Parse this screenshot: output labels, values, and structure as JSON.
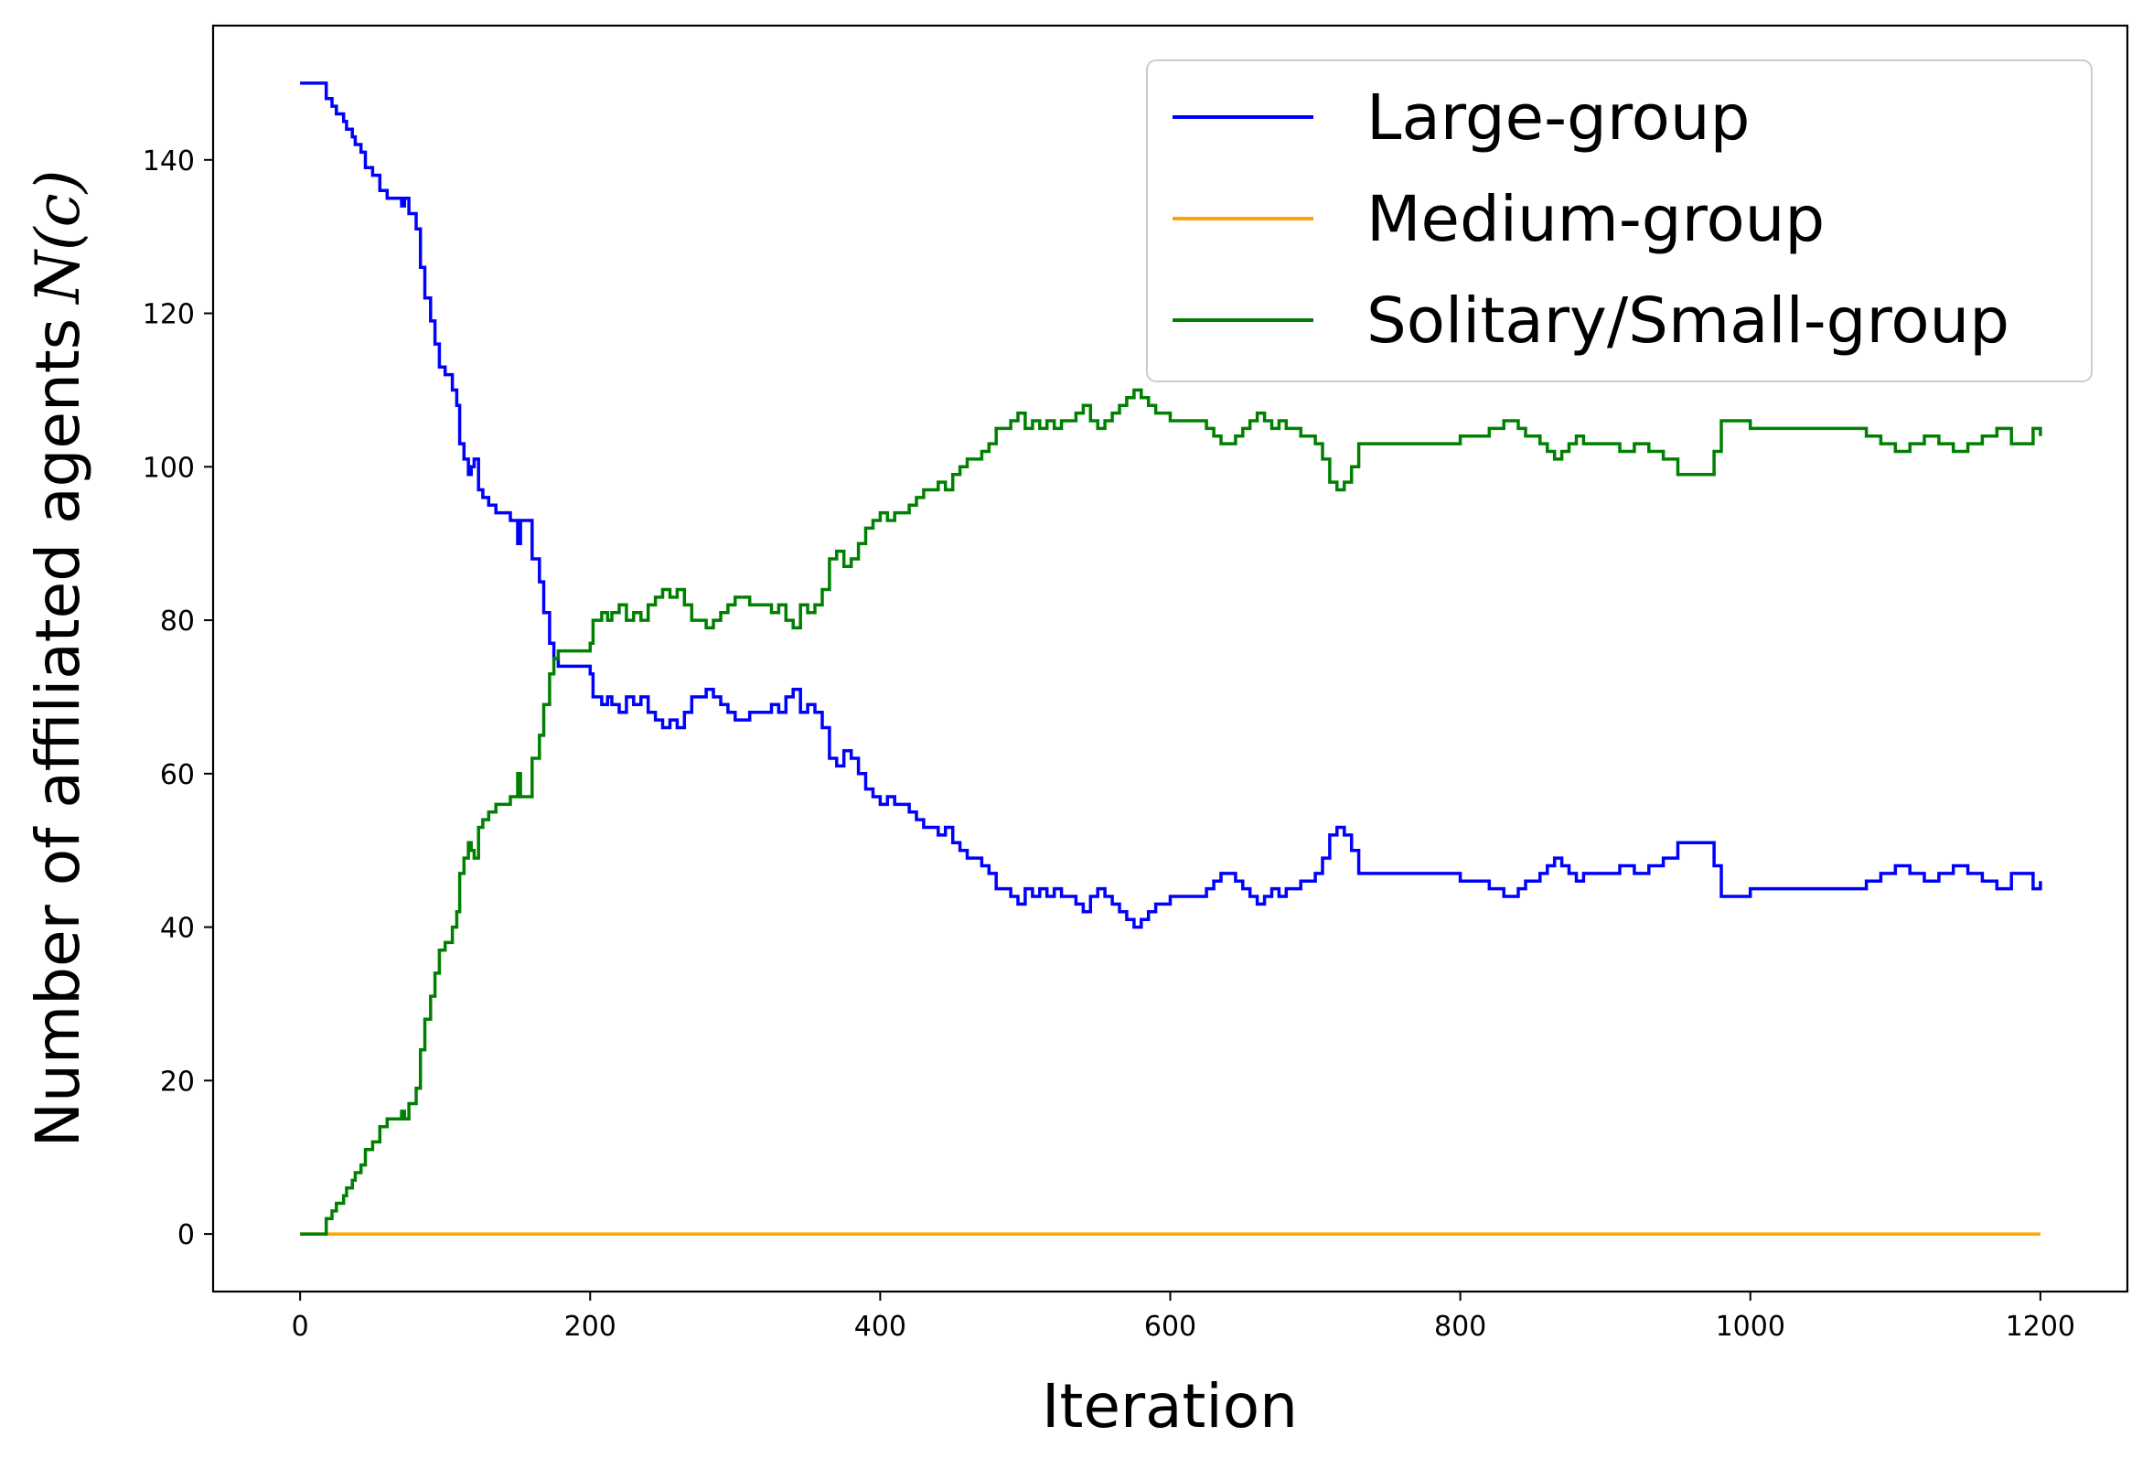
{
  "chart_data": {
    "type": "line",
    "xlabel": "Iteration",
    "ylabel": "Number of affiliated agents",
    "ylabel_math": "N(c)",
    "xlim": [
      -60,
      1260
    ],
    "ylim": [
      -7.5,
      157.5
    ],
    "xticks": [
      0,
      200,
      400,
      600,
      800,
      1000,
      1200
    ],
    "yticks": [
      0,
      20,
      40,
      60,
      80,
      100,
      120,
      140
    ],
    "grid": false,
    "legend_position": "top-right",
    "series": [
      {
        "name": "Large-group",
        "color": "#0000ff",
        "x": [
          0,
          15,
          18,
          22,
          25,
          30,
          32,
          36,
          38,
          42,
          45,
          50,
          55,
          60,
          70,
          72,
          75,
          80,
          83,
          86,
          90,
          93,
          96,
          100,
          103,
          105,
          108,
          110,
          113,
          116,
          118,
          120,
          123,
          126,
          130,
          135,
          140,
          145,
          150,
          152,
          155,
          160,
          165,
          168,
          172,
          175,
          178,
          182,
          190,
          200,
          202,
          208,
          212,
          215,
          220,
          225,
          230,
          235,
          240,
          245,
          250,
          255,
          260,
          265,
          270,
          280,
          285,
          290,
          295,
          300,
          310,
          320,
          325,
          330,
          335,
          340,
          345,
          350,
          355,
          360,
          365,
          370,
          375,
          380,
          385,
          390,
          395,
          400,
          405,
          410,
          415,
          420,
          425,
          430,
          440,
          445,
          450,
          455,
          460,
          465,
          470,
          475,
          480,
          490,
          495,
          500,
          505,
          510,
          515,
          520,
          525,
          530,
          535,
          540,
          545,
          550,
          555,
          560,
          565,
          570,
          575,
          580,
          585,
          590,
          595,
          600,
          605,
          610,
          620,
          625,
          630,
          635,
          640,
          645,
          650,
          655,
          660,
          665,
          670,
          675,
          680,
          690,
          700,
          705,
          710,
          715,
          720,
          725,
          730,
          760,
          800,
          820,
          830,
          840,
          845,
          850,
          855,
          860,
          865,
          870,
          875,
          880,
          885,
          890,
          900,
          910,
          920,
          930,
          940,
          950,
          960,
          970,
          975,
          980,
          1000,
          1020,
          1040,
          1060,
          1080,
          1090,
          1100,
          1110,
          1120,
          1130,
          1140,
          1150,
          1160,
          1170,
          1180,
          1190,
          1195,
          1200
        ],
        "y": [
          150,
          150,
          148,
          147,
          146,
          145,
          144,
          143,
          142,
          141,
          139,
          138,
          136,
          135,
          134,
          135,
          133,
          131,
          126,
          122,
          119,
          116,
          113,
          112,
          112,
          110,
          108,
          103,
          101,
          99,
          100,
          101,
          97,
          96,
          95,
          94,
          94,
          93,
          90,
          93,
          93,
          88,
          85,
          81,
          77,
          75,
          74,
          74,
          74,
          73,
          70,
          69,
          70,
          69,
          68,
          70,
          69,
          70,
          68,
          67,
          66,
          67,
          66,
          68,
          70,
          71,
          70,
          69,
          68,
          67,
          68,
          68,
          69,
          68,
          70,
          71,
          68,
          69,
          68,
          66,
          62,
          61,
          63,
          62,
          60,
          58,
          57,
          56,
          57,
          56,
          56,
          55,
          54,
          53,
          52,
          53,
          51,
          50,
          49,
          49,
          48,
          47,
          45,
          44,
          43,
          45,
          44,
          45,
          44,
          45,
          44,
          44,
          43,
          42,
          44,
          45,
          44,
          43,
          42,
          41,
          40,
          41,
          42,
          43,
          43,
          44,
          44,
          44,
          44,
          45,
          46,
          47,
          47,
          46,
          45,
          44,
          43,
          44,
          45,
          44,
          45,
          46,
          47,
          49,
          52,
          53,
          52,
          50,
          47,
          47,
          46,
          45,
          44,
          45,
          46,
          46,
          47,
          48,
          49,
          48,
          47,
          46,
          47,
          47,
          47,
          48,
          47,
          48,
          49,
          51,
          51,
          51,
          48,
          44,
          45,
          45,
          45,
          45,
          46,
          47,
          48,
          47,
          46,
          47,
          48,
          47,
          46,
          45,
          47,
          47,
          45,
          46
        ]
      },
      {
        "name": "Medium-group",
        "color": "#ffa500",
        "x": [
          0,
          1200
        ],
        "y": [
          0,
          0
        ]
      },
      {
        "name": "Solitary/Small-group",
        "color": "#008000",
        "x": [
          0,
          15,
          18,
          22,
          25,
          30,
          32,
          36,
          38,
          42,
          45,
          50,
          55,
          60,
          70,
          72,
          75,
          80,
          83,
          86,
          90,
          93,
          96,
          100,
          103,
          105,
          108,
          110,
          113,
          116,
          118,
          120,
          123,
          126,
          130,
          135,
          140,
          145,
          150,
          152,
          155,
          160,
          165,
          168,
          172,
          175,
          178,
          182,
          190,
          200,
          202,
          208,
          212,
          215,
          220,
          225,
          230,
          235,
          240,
          245,
          250,
          255,
          260,
          265,
          270,
          280,
          285,
          290,
          295,
          300,
          310,
          320,
          325,
          330,
          335,
          340,
          345,
          350,
          355,
          360,
          365,
          370,
          375,
          380,
          385,
          390,
          395,
          400,
          405,
          410,
          415,
          420,
          425,
          430,
          440,
          445,
          450,
          455,
          460,
          465,
          470,
          475,
          480,
          490,
          495,
          500,
          505,
          510,
          515,
          520,
          525,
          530,
          535,
          540,
          545,
          550,
          555,
          560,
          565,
          570,
          575,
          580,
          585,
          590,
          595,
          600,
          605,
          610,
          620,
          625,
          630,
          635,
          640,
          645,
          650,
          655,
          660,
          665,
          670,
          675,
          680,
          690,
          700,
          705,
          710,
          715,
          720,
          725,
          730,
          760,
          800,
          820,
          830,
          840,
          845,
          850,
          855,
          860,
          865,
          870,
          875,
          880,
          885,
          890,
          900,
          910,
          920,
          930,
          940,
          950,
          960,
          970,
          975,
          980,
          1000,
          1020,
          1040,
          1060,
          1080,
          1090,
          1100,
          1110,
          1120,
          1130,
          1140,
          1150,
          1160,
          1170,
          1180,
          1190,
          1195,
          1200
        ],
        "y": [
          0,
          0,
          2,
          3,
          4,
          5,
          6,
          7,
          8,
          9,
          11,
          12,
          14,
          15,
          16,
          15,
          17,
          19,
          24,
          28,
          31,
          34,
          37,
          38,
          38,
          40,
          42,
          47,
          49,
          51,
          50,
          49,
          53,
          54,
          55,
          56,
          56,
          57,
          60,
          57,
          57,
          62,
          65,
          69,
          73,
          75,
          76,
          76,
          76,
          77,
          80,
          81,
          80,
          81,
          82,
          80,
          81,
          80,
          82,
          83,
          84,
          83,
          84,
          82,
          80,
          79,
          80,
          81,
          82,
          83,
          82,
          82,
          81,
          82,
          80,
          79,
          82,
          81,
          82,
          84,
          88,
          89,
          87,
          88,
          90,
          92,
          93,
          94,
          93,
          94,
          94,
          95,
          96,
          97,
          98,
          97,
          99,
          100,
          101,
          101,
          102,
          103,
          105,
          106,
          107,
          105,
          106,
          105,
          106,
          105,
          106,
          106,
          107,
          108,
          106,
          105,
          106,
          107,
          108,
          109,
          110,
          109,
          108,
          107,
          107,
          106,
          106,
          106,
          106,
          105,
          104,
          103,
          103,
          104,
          105,
          106,
          107,
          106,
          105,
          106,
          105,
          104,
          103,
          101,
          98,
          97,
          98,
          100,
          103,
          103,
          104,
          105,
          106,
          105,
          104,
          104,
          103,
          102,
          101,
          102,
          103,
          104,
          103,
          103,
          103,
          102,
          103,
          102,
          101,
          99,
          99,
          99,
          102,
          106,
          105,
          105,
          105,
          105,
          104,
          103,
          102,
          103,
          104,
          103,
          102,
          103,
          104,
          105,
          103,
          103,
          105,
          104
        ]
      }
    ]
  }
}
